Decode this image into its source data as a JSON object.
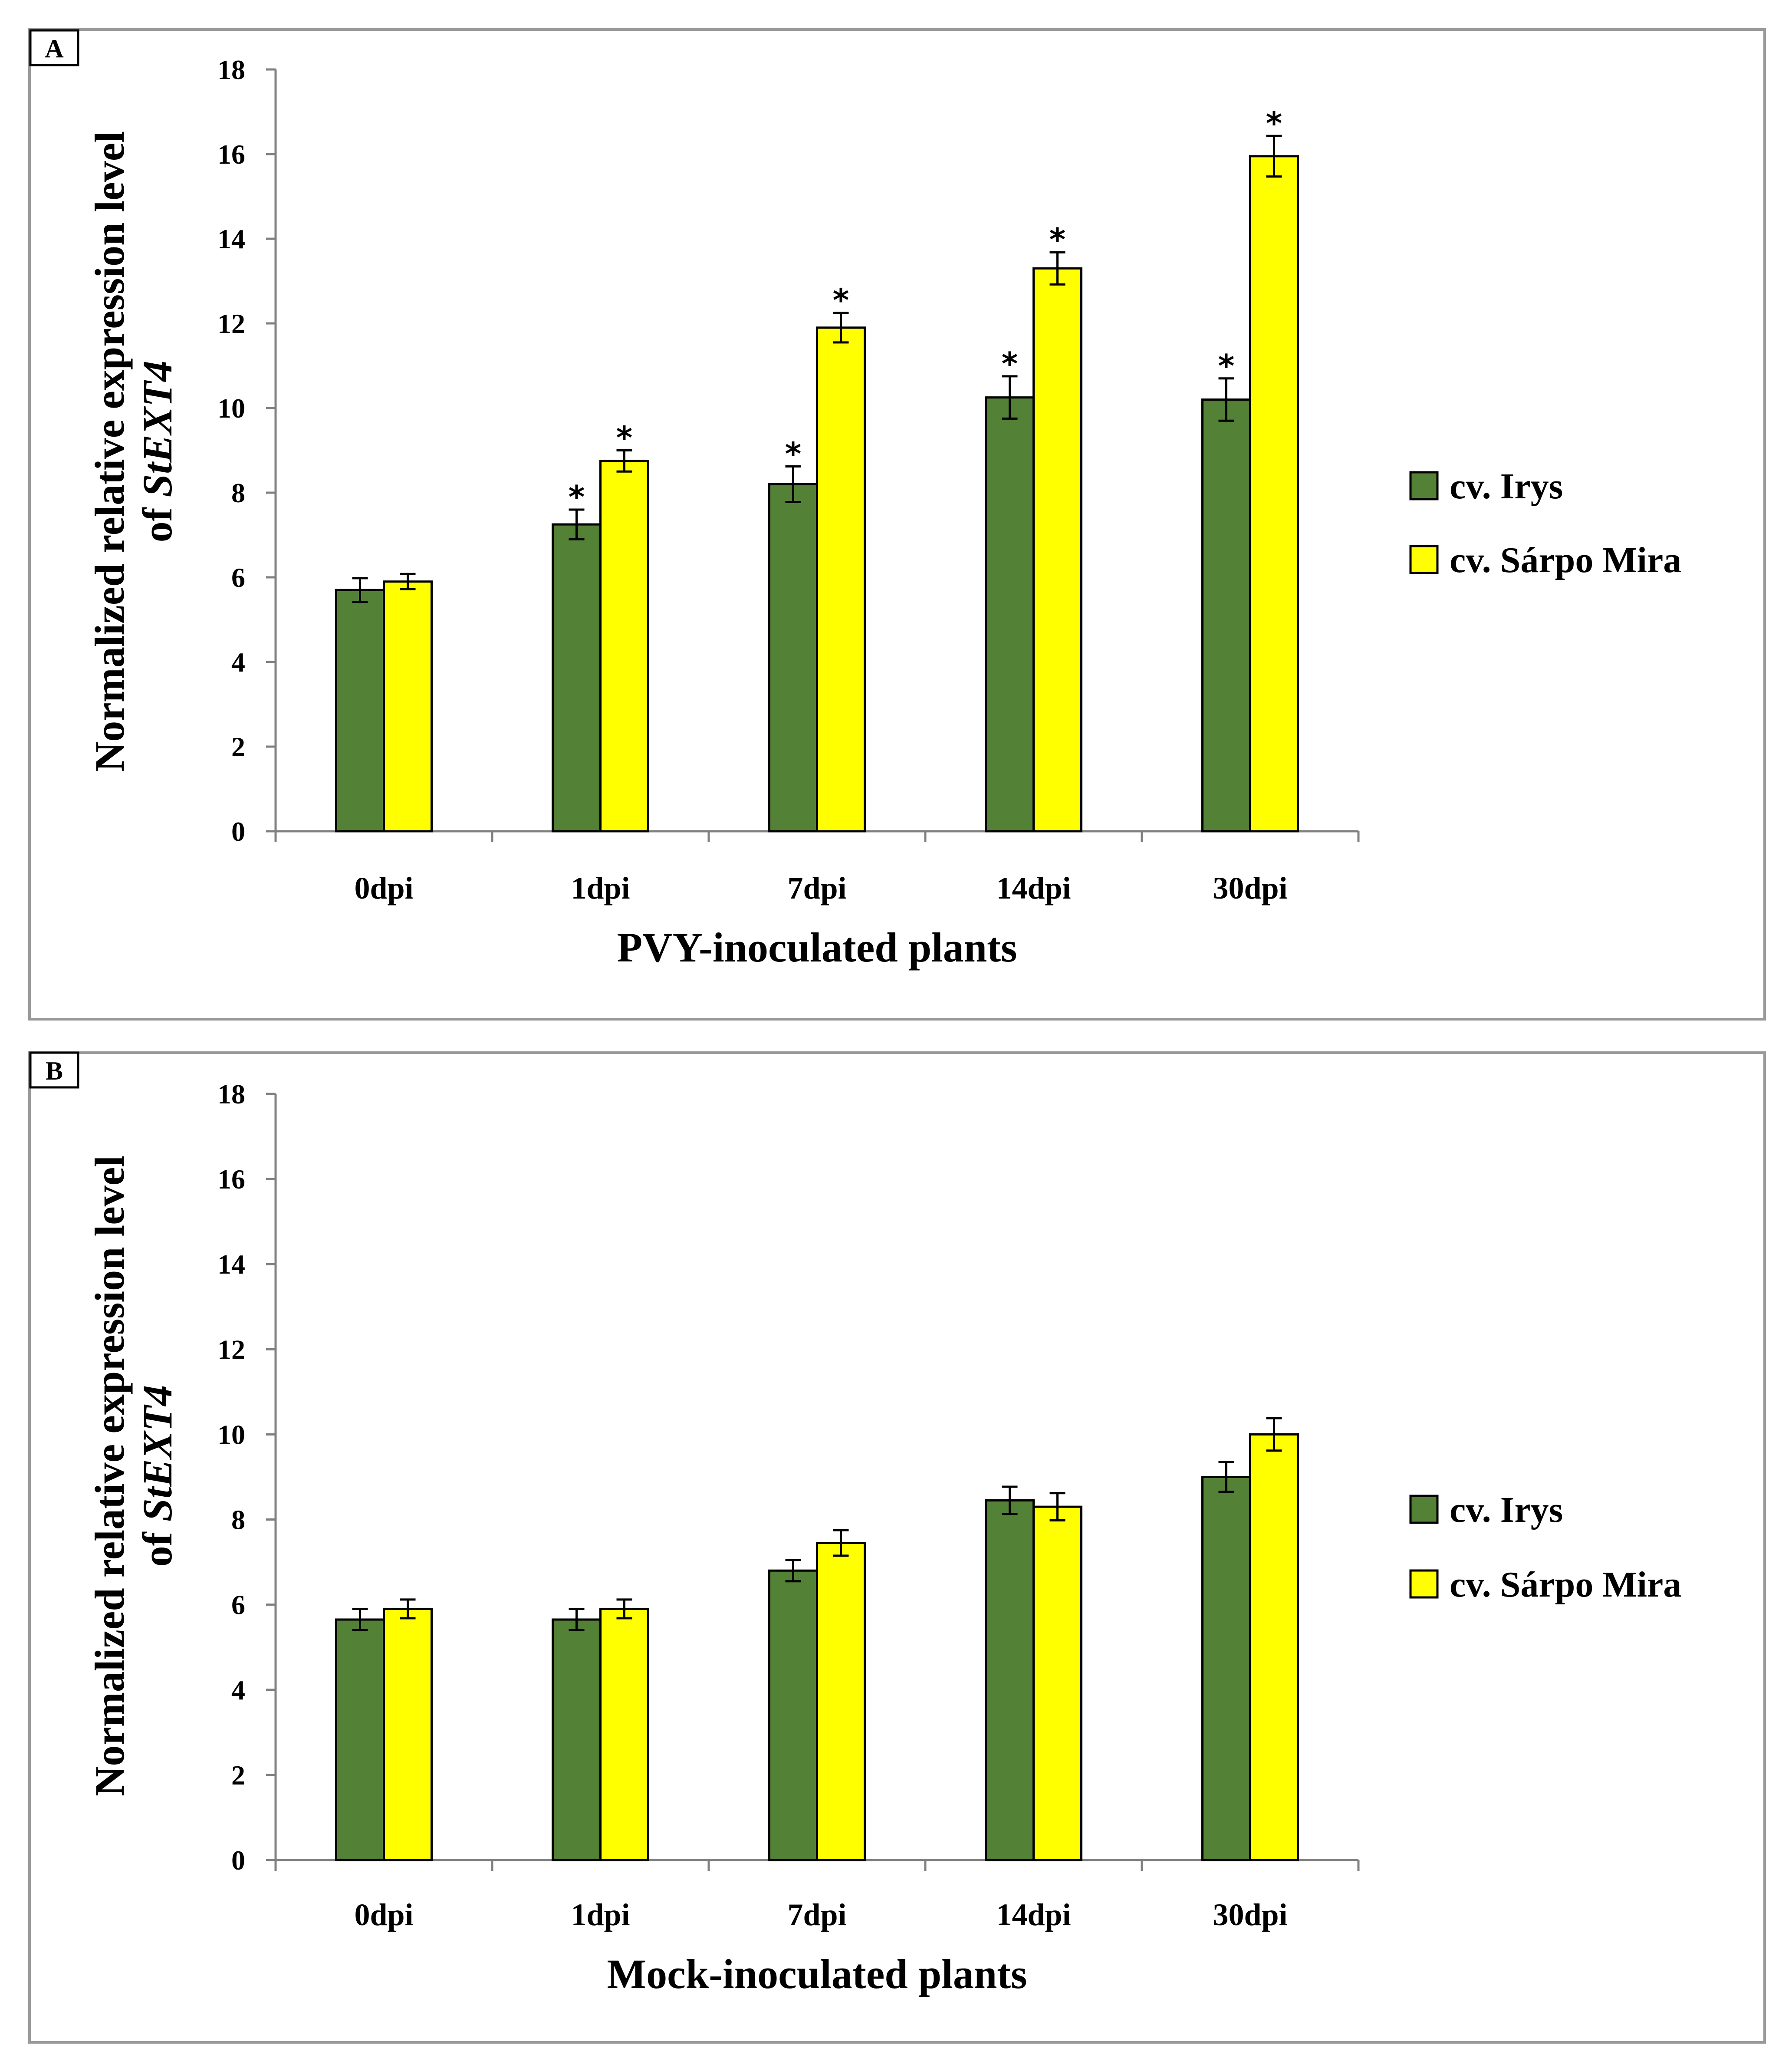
{
  "colors": {
    "irys": "#538135",
    "sarpo": "#FFFF00",
    "frame": "#9a9a9a"
  },
  "chart_data": [
    {
      "type": "bar",
      "panel_label": "A",
      "ylabel_line1": "Normalized  relative expression level",
      "ylabel_line2_prefix": "of ",
      "ylabel_line2_gene": "StEXT4",
      "xlabel": "PVY-inoculated plants",
      "ylim": [
        0,
        18
      ],
      "yticks": [
        "0",
        "2",
        "4",
        "6",
        "8",
        "10",
        "12",
        "14",
        "16",
        "18"
      ],
      "categories": [
        "0dpi",
        "1dpi",
        "7dpi",
        "14dpi",
        "30dpi"
      ],
      "series": [
        {
          "name": "cv. Irys",
          "values": [
            5.7,
            7.25,
            8.2,
            10.25,
            10.2
          ],
          "errors": [
            0.28,
            0.35,
            0.42,
            0.5,
            0.5
          ],
          "significant": [
            false,
            true,
            true,
            true,
            true
          ]
        },
        {
          "name": "cv. Sárpo Mira",
          "values": [
            5.9,
            8.75,
            11.9,
            13.3,
            15.95
          ],
          "errors": [
            0.18,
            0.25,
            0.35,
            0.38,
            0.48
          ],
          "significant": [
            false,
            true,
            true,
            true,
            true
          ]
        }
      ],
      "significance_marker": "*",
      "legend": [
        "cv. Irys",
        "cv. Sárpo Mira"
      ]
    },
    {
      "type": "bar",
      "panel_label": "B",
      "ylabel_line1": "Normalized  relative expression level",
      "ylabel_line2_prefix": "of ",
      "ylabel_line2_gene": "StEXT4",
      "xlabel": "Mock-inoculated plants",
      "ylim": [
        0,
        18
      ],
      "yticks": [
        "0",
        "2",
        "4",
        "6",
        "8",
        "10",
        "12",
        "14",
        "16",
        "18"
      ],
      "categories": [
        "0dpi",
        "1dpi",
        "7dpi",
        "14dpi",
        "30dpi"
      ],
      "series": [
        {
          "name": "cv. Irys",
          "values": [
            5.65,
            5.65,
            6.8,
            8.45,
            9.0
          ],
          "errors": [
            0.25,
            0.25,
            0.25,
            0.32,
            0.35
          ],
          "significant": [
            false,
            false,
            false,
            false,
            false
          ]
        },
        {
          "name": "cv. Sárpo Mira",
          "values": [
            5.9,
            5.9,
            7.45,
            8.3,
            10.0
          ],
          "errors": [
            0.22,
            0.22,
            0.3,
            0.32,
            0.38
          ],
          "significant": [
            false,
            false,
            false,
            false,
            false
          ]
        }
      ],
      "significance_marker": "*",
      "legend": [
        "cv. Irys",
        "cv. Sárpo Mira"
      ]
    }
  ]
}
